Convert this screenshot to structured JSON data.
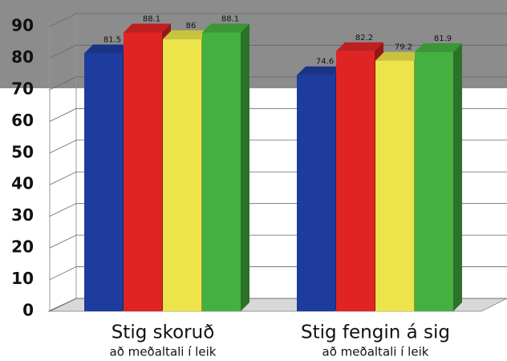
{
  "chart_data": {
    "type": "bar3d",
    "categories": [
      "Stig skoruð",
      "Stig fengin á sig"
    ],
    "category_notes": [
      "að meðaltali í leik",
      "að meðaltali í leik"
    ],
    "series": [
      {
        "color": "#1e3c9e",
        "values": [
          81.5,
          74.6
        ]
      },
      {
        "color": "#e02424",
        "values": [
          88.1,
          82.2
        ]
      },
      {
        "color": "#ece44a",
        "values": [
          86,
          79.2
        ]
      },
      {
        "color": "#44b040",
        "values": [
          88.1,
          81.9
        ]
      }
    ],
    "ylim": [
      0,
      90
    ],
    "yticks": [
      0,
      10,
      20,
      30,
      40,
      50,
      60,
      70,
      80,
      90
    ],
    "grid": true
  }
}
